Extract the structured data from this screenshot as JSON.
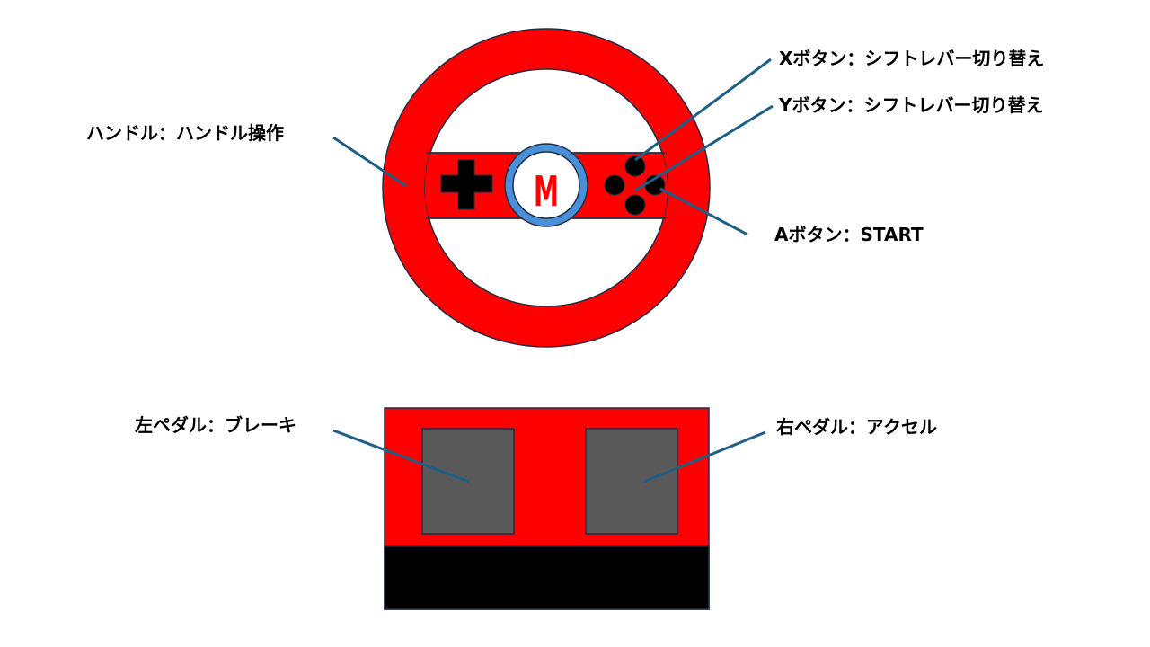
{
  "colors": {
    "wheel_red": "#ff0000",
    "outline": "#1f2f45",
    "hub_blue": "#4a90d9",
    "button_black": "#000000",
    "pedal_gray": "#595959",
    "leader_line": "#1f5f86",
    "logo_red": "#ff0000"
  },
  "icons": {
    "dpad": "dpad-cross-icon",
    "logo": "m-logo-icon"
  },
  "logo_text": "M",
  "labels": {
    "x_button": "Xボタン：シフトレバー切り替え",
    "y_button": "Yボタン：シフトレバー切り替え",
    "a_button": "Aボタン：START",
    "handle": "ハンドル：ハンドル操作",
    "left_pedal": "左ペダル：ブレーキ",
    "right_pedal": "右ペダル：アクセル"
  }
}
